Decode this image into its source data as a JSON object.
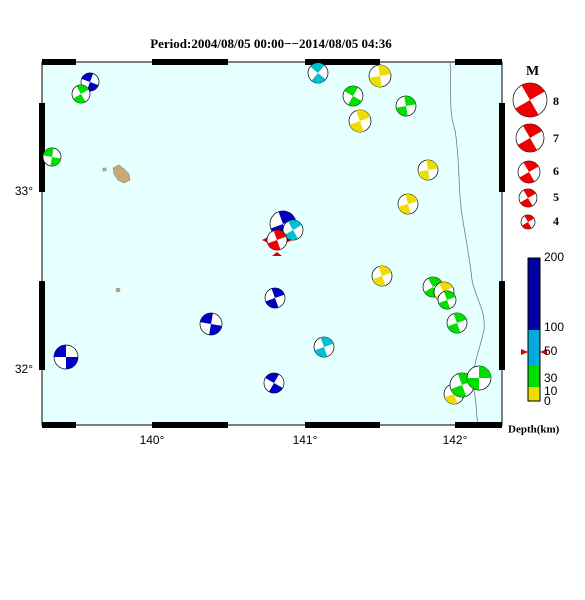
{
  "header": {
    "title": "Period:2004/08/05 00:00−−2014/08/05 04:36"
  },
  "map": {
    "lat_labels": [
      "33°",
      "32°"
    ],
    "lon_labels": [
      "140°",
      "141°",
      "142°"
    ]
  },
  "magnitude_legend": {
    "title": "M",
    "labels": [
      "8",
      "7",
      "6",
      "5",
      "4"
    ]
  },
  "depth_legend": {
    "title": "Depth(km)",
    "labels": [
      "200",
      "100",
      "50",
      "30",
      "10",
      "0"
    ]
  }
}
